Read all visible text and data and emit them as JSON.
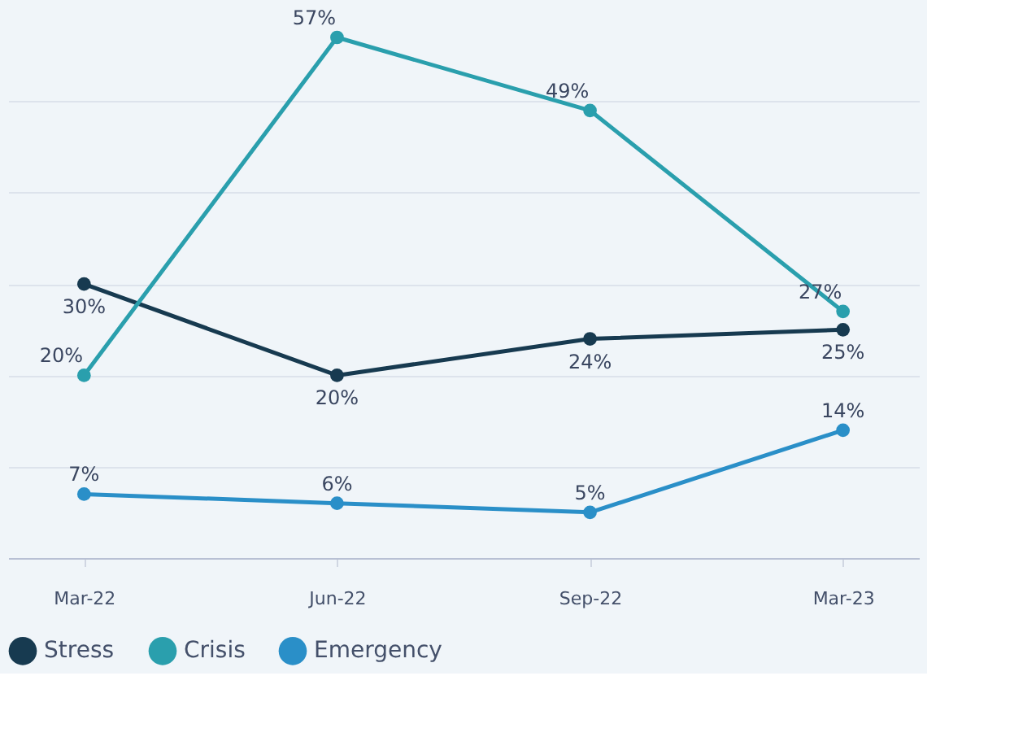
{
  "chart_data": {
    "type": "line",
    "categories": [
      "Mar-22",
      "Jun-22",
      "Sep-22",
      "Mar-23"
    ],
    "series": [
      {
        "name": "Stress",
        "color": "#173a50",
        "values": [
          30,
          20,
          24,
          25
        ],
        "value_labels": [
          "30%",
          "20%",
          "24%",
          "25%"
        ]
      },
      {
        "name": "Crisis",
        "color": "#2a9fad",
        "values": [
          20,
          57,
          49,
          27
        ],
        "value_labels": [
          "20%",
          "57%",
          "49%",
          "27%"
        ]
      },
      {
        "name": "Emergency",
        "color": "#2a8fc8",
        "values": [
          7,
          6,
          5,
          14
        ],
        "value_labels": [
          "7%",
          "6%",
          "5%",
          "14%"
        ]
      }
    ],
    "marker": "circle",
    "line_style": "solid",
    "grid": "y",
    "tick_labels": "x",
    "legend": "bottom"
  }
}
